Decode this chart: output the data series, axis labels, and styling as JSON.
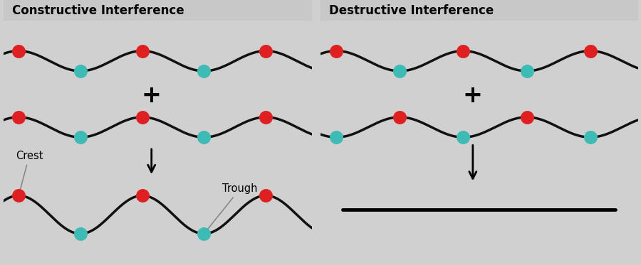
{
  "fig_width": 9.0,
  "fig_height": 3.73,
  "bg_outer": "#d0d0d0",
  "panel_bg": "#e4e4e4",
  "header_bg": "#c8c8c8",
  "title_left": "Constructive Interference",
  "title_right": "Destructive Interference",
  "title_fontsize": 12,
  "title_fontweight": "bold",
  "red_color": "#e02020",
  "cyan_color": "#3cbcb4",
  "wave_color": "#111111",
  "wave_lw": 2.5,
  "dot_size": 160,
  "amp_small": 0.38,
  "amp_large": 0.72,
  "period": 3.6,
  "label_fontsize": 10.5
}
